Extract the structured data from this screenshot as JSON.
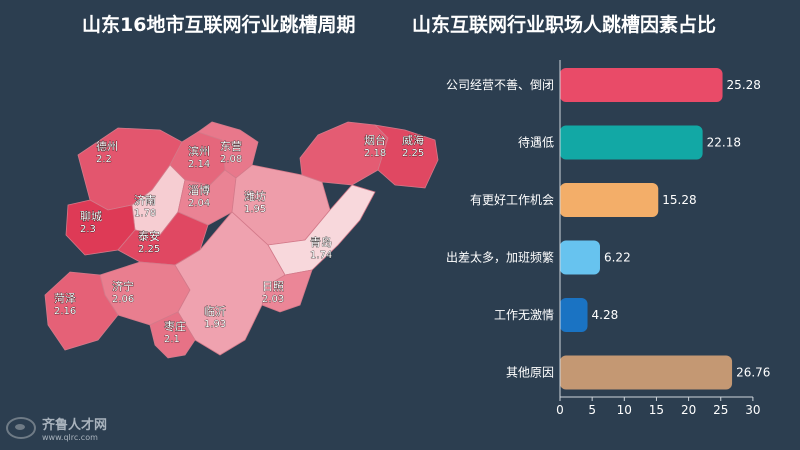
{
  "titles": {
    "map": "山东16地市互联网行业跳槽周期",
    "bar": "山东互联网行业职场人跳槽因素占比"
  },
  "logo": {
    "brand": "齐鲁人才网",
    "url": "www.qlrc.com"
  },
  "chart_data": [
    {
      "type": "map",
      "title": "山东16地市互联网行业跳槽周期",
      "regions": [
        {
          "name": "德州",
          "value": 2.2
        },
        {
          "name": "滨州",
          "value": 2.14
        },
        {
          "name": "东营",
          "value": 2.08
        },
        {
          "name": "烟台",
          "value": 2.18
        },
        {
          "name": "威海",
          "value": 2.25
        },
        {
          "name": "济南",
          "value": 1.78
        },
        {
          "name": "淄博",
          "value": 2.04
        },
        {
          "name": "潍坊",
          "value": 1.95
        },
        {
          "name": "聊城",
          "value": 2.3
        },
        {
          "name": "泰安",
          "value": 2.25
        },
        {
          "name": "青岛",
          "value": 1.74
        },
        {
          "name": "济宁",
          "value": 2.06
        },
        {
          "name": "菏泽",
          "value": 2.16
        },
        {
          "name": "日照",
          "value": 2.03
        },
        {
          "name": "临沂",
          "value": 1.93
        },
        {
          "name": "枣庄",
          "value": 2.1
        }
      ]
    },
    {
      "type": "bar",
      "orientation": "horizontal",
      "title": "山东互联网行业职场人跳槽因素占比",
      "categories": [
        "公司经营不善、倒闭",
        "待遇低",
        "有更好工作机会",
        "出差太多，加班频繁",
        "工作无激情",
        "其他原因"
      ],
      "values": [
        25.28,
        22.18,
        15.28,
        6.22,
        4.28,
        26.76
      ],
      "value_labels": [
        "25.28",
        "22.18",
        "15.28",
        "6.22",
        "4.28",
        "26.76"
      ],
      "colors": [
        "#e94b68",
        "#12a8a5",
        "#f3ae69",
        "#67c3ef",
        "#1a73c3",
        "#c49873"
      ],
      "xlim": [
        0,
        30
      ],
      "xticks": [
        "0",
        "5",
        "10",
        "15",
        "20",
        "25",
        "30"
      ]
    }
  ]
}
